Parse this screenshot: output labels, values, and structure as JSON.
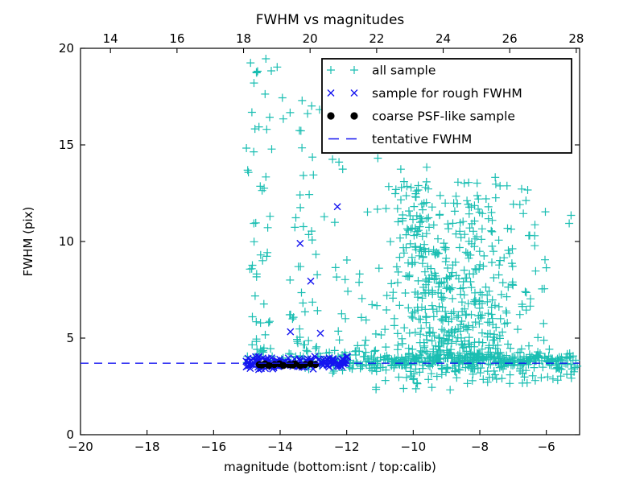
{
  "title": "FWHM vs magnitudes",
  "colors": {
    "all_sample": "#1abeb2",
    "rough": "#1414f0",
    "psf": "#000000",
    "line": "#1414f0",
    "axis": "#000000",
    "background": "#ffffff"
  },
  "axes": {
    "x_bottom": {
      "label": "magnitude (bottom:isnt / top:calib)",
      "min": -20,
      "max": -5,
      "ticks": [
        {
          "v": -20,
          "t": "−20"
        },
        {
          "v": -18,
          "t": "−18"
        },
        {
          "v": -16,
          "t": "−16"
        },
        {
          "v": -14,
          "t": "−14"
        },
        {
          "v": -12,
          "t": "−12"
        },
        {
          "v": -10,
          "t": "−10"
        },
        {
          "v": -8,
          "t": "−8"
        },
        {
          "v": -6,
          "t": "−6"
        }
      ]
    },
    "x_top": {
      "min": 13.1,
      "max": 28.1,
      "ticks": [
        {
          "v": 14,
          "t": "14"
        },
        {
          "v": 16,
          "t": "16"
        },
        {
          "v": 18,
          "t": "18"
        },
        {
          "v": 20,
          "t": "20"
        },
        {
          "v": 22,
          "t": "22"
        },
        {
          "v": 24,
          "t": "24"
        },
        {
          "v": 26,
          "t": "26"
        },
        {
          "v": 28,
          "t": "28"
        }
      ]
    },
    "y": {
      "label": "FWHM (pix)",
      "min": 0,
      "max": 20,
      "ticks": [
        {
          "v": 0,
          "t": "0"
        },
        {
          "v": 5,
          "t": "5"
        },
        {
          "v": 10,
          "t": "10"
        },
        {
          "v": 15,
          "t": "15"
        },
        {
          "v": 20,
          "t": "20"
        }
      ]
    }
  },
  "legend": {
    "entries": [
      {
        "label": "all sample",
        "marker": "plus",
        "color_key": "all_sample"
      },
      {
        "label": "sample for rough FWHM",
        "marker": "x",
        "color_key": "rough"
      },
      {
        "label": "coarse PSF-like sample",
        "marker": "circle",
        "color_key": "psf"
      },
      {
        "label": "tentative FWHM",
        "marker": "dash",
        "color_key": "line"
      }
    ]
  },
  "chart_data": {
    "type": "scatter",
    "seed": 7,
    "xlabel": "magnitude (bottom:isnt / top:calib)",
    "ylabel": "FWHM (pix)",
    "xlim": [
      -20,
      -5
    ],
    "ylim": [
      0,
      20
    ],
    "top_axis_offset": 33.1,
    "series": [
      {
        "name": "all sample",
        "marker": "plus",
        "color_key": "all_sample",
        "clusters": [
          {
            "n": 330,
            "x": {
              "dist": "u",
              "a": -12.45,
              "b": -5.02
            },
            "y": {
              "dist": "g",
              "m": 3.8,
              "s": 0.24,
              "clip": [
                3.1,
                4.7
              ]
            }
          },
          {
            "n": 60,
            "x": {
              "dist": "u",
              "a": -11.2,
              "b": -5.05
            },
            "y": {
              "dist": "g",
              "m": 3.0,
              "s": 0.3,
              "clip": [
                2.3,
                3.55
              ]
            }
          },
          {
            "n": 25,
            "x": {
              "dist": "u",
              "a": -15.1,
              "b": -12.45
            },
            "y": {
              "dist": "g",
              "m": 3.8,
              "s": 0.2,
              "clip": [
                3.3,
                4.4
              ]
            }
          },
          {
            "n": 55,
            "x": {
              "dist": "g",
              "m": -14.62,
              "s": 0.22,
              "clip": [
                -15.1,
                -14.15
              ]
            },
            "y": {
              "dist": "p",
              "base": 4.0,
              "range": 15.0,
              "exp": 1.9
            }
          },
          {
            "n": 55,
            "x": {
              "dist": "g",
              "m": -13.2,
              "s": 0.38,
              "clip": [
                -13.95,
                -12.4
              ]
            },
            "y": {
              "dist": "p",
              "base": 4.0,
              "range": 13.5,
              "exp": 2.1
            }
          },
          {
            "n": 30,
            "x": {
              "dist": "u",
              "a": -12.4,
              "b": -11.0
            },
            "y": {
              "dist": "p",
              "base": 4.0,
              "range": 9.0,
              "exp": 1.6
            }
          },
          {
            "n": 470,
            "x": {
              "dist": "g",
              "m": -8.55,
              "s": 1.15,
              "clip": [
                -11.2,
                -5.05
              ]
            },
            "y": {
              "dist": "p",
              "base": 3.95,
              "range": 9.2,
              "exp": 2.3
            }
          },
          {
            "kind": "linked",
            "n": 110,
            "x0": -10.35,
            "dx": 1.5,
            "xj": 0.35,
            "y0": 12.3,
            "dy": -5.8,
            "yj": 0.8
          },
          {
            "n": 26,
            "x": {
              "dist": "p",
              "base": -15.05,
              "range": 9.9,
              "exp": 1.6
            },
            "y": {
              "dist": "u",
              "a": 13.2,
              "b": 19.8
            }
          }
        ]
      },
      {
        "name": "sample for rough FWHM",
        "marker": "x",
        "color_key": "rough",
        "clusters": [
          {
            "n": 130,
            "x": {
              "dist": "u",
              "a": -15.05,
              "b": -11.95
            },
            "y": {
              "dist": "g",
              "m": 3.72,
              "s": 0.16,
              "clip": [
                3.3,
                4.15
              ]
            }
          },
          {
            "points": [
              [
                -12.28,
                11.8
              ],
              [
                -13.4,
                9.9
              ],
              [
                -13.08,
                7.95
              ],
              [
                -13.69,
                5.33
              ],
              [
                -12.79,
                5.25
              ]
            ]
          }
        ]
      },
      {
        "name": "coarse PSF-like sample",
        "marker": "circle",
        "color_key": "psf",
        "clusters": [
          {
            "points": [
              [
                -14.63,
                3.63
              ],
              [
                -14.55,
                3.6
              ],
              [
                -14.46,
                3.67
              ],
              [
                -14.34,
                3.58
              ],
              [
                -14.17,
                3.63
              ],
              [
                -14.02,
                3.67
              ],
              [
                -13.9,
                3.58
              ],
              [
                -13.73,
                3.63
              ],
              [
                -13.62,
                3.6
              ],
              [
                -13.56,
                3.67
              ],
              [
                -13.4,
                3.58
              ],
              [
                -13.25,
                3.63
              ],
              [
                -13.08,
                3.67
              ],
              [
                -12.94,
                3.63
              ]
            ]
          }
        ]
      }
    ],
    "line": {
      "name": "tentative FWHM",
      "y": 3.7,
      "style": "dashed",
      "color_key": "line"
    }
  }
}
